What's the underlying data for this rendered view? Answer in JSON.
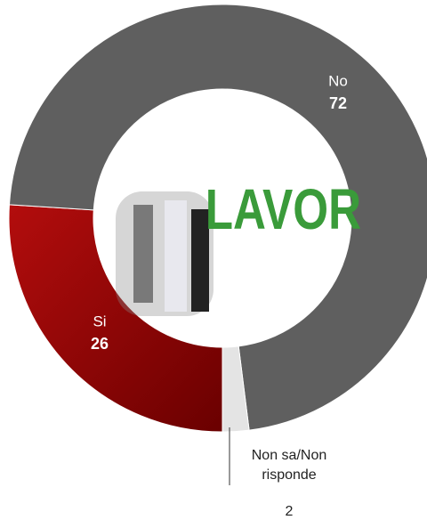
{
  "chart_data": {
    "type": "donut",
    "categories": [
      "Si",
      "No",
      "Non sa/Non risponde"
    ],
    "values": [
      26,
      72,
      2
    ],
    "colors": [
      "#9b0a0a",
      "#5f5f5f",
      "#e4e4e4"
    ],
    "start_angle": 180,
    "image_text": "LAVOR"
  }
}
